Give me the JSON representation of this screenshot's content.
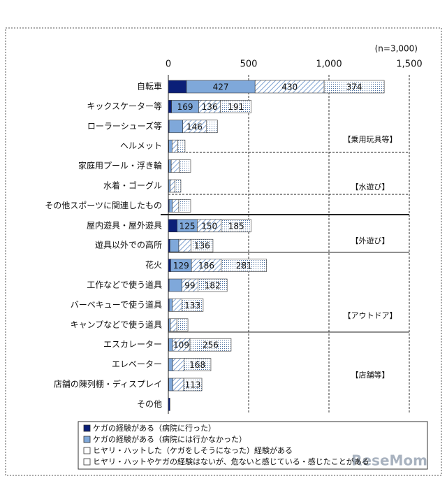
{
  "chart_data": {
    "type": "bar",
    "orientation": "horizontal",
    "stacked": true,
    "note": "(n=3,000)",
    "categories": [
      "自転車",
      "キックスケーター等",
      "ローラーシューズ等",
      "ヘルメット",
      "家庭用プール・浮き輪",
      "水着・ゴーグル",
      "その他スポーツに関連したもの",
      "屋内遊具・屋外遊具",
      "遊具以外での高所",
      "花火",
      "工作などで使う道具",
      "バーベキューで使う道具",
      "キャンプなどで使う道具",
      "エスカレーター",
      "エレベーター",
      "店舗の陳列棚・ディスプレイ",
      "その他"
    ],
    "series": [
      {
        "name": "ケガの経験がある（病院に行った）",
        "color": "#0b1f78",
        "pattern": "solid",
        "show_labels": false,
        "values": [
          113,
          20,
          5,
          3,
          3,
          2,
          5,
          55,
          10,
          15,
          5,
          5,
          3,
          3,
          2,
          3,
          10
        ]
      },
      {
        "name": "ケガの経験がある（病院には行かなかった）",
        "color": "#7fa8da",
        "pattern": "solid",
        "show_labels": true,
        "values": [
          427,
          169,
          85,
          20,
          15,
          10,
          20,
          125,
          55,
          129,
          80,
          20,
          10,
          23,
          25,
          25,
          0
        ]
      },
      {
        "name": "ヒヤリ・ハットした（ケガをしそうになった）経験がある",
        "color": "#4a7cc0",
        "pattern": "hatch",
        "show_labels": true,
        "values": [
          430,
          136,
          146,
          35,
          50,
          30,
          40,
          150,
          77,
          186,
          99,
          59,
          40,
          109,
          70,
          68,
          0
        ]
      },
      {
        "name": "ヒヤリ・ハットやケガの経験はないが、危ないと感じている・感じたことがある",
        "color": "#4a6fa0",
        "pattern": "dots",
        "show_labels": true,
        "values": [
          374,
          191,
          70,
          46,
          71,
          36,
          74,
          185,
          136,
          281,
          182,
          133,
          69,
          256,
          168,
          113,
          0
        ]
      }
    ],
    "xlim": [
      0,
      1500
    ],
    "xticks": [
      0,
      500,
      {
        "value": 1000,
        "label": "1,000"
      },
      {
        "value": 1500,
        "label": "1,500"
      }
    ],
    "grid": true,
    "annotations": [
      "【乗用玩具等】",
      "【水遊び】",
      "【外遊び】",
      "【アウトドア】",
      "【店舗等】"
    ],
    "watermark": "ReseMom"
  }
}
